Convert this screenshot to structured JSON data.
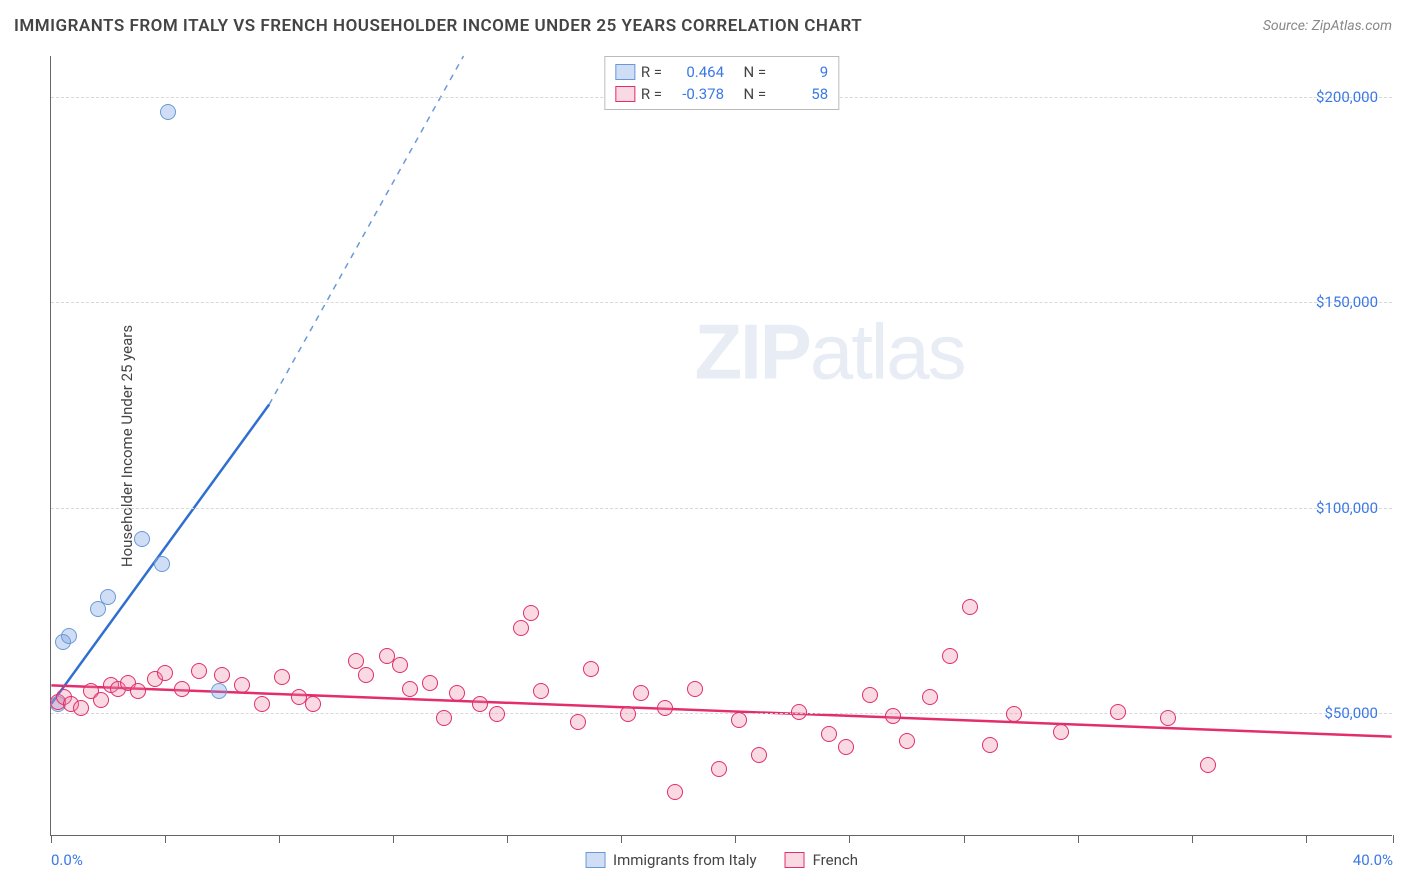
{
  "title": "IMMIGRANTS FROM ITALY VS FRENCH HOUSEHOLDER INCOME UNDER 25 YEARS CORRELATION CHART",
  "source": "Source: ZipAtlas.com",
  "watermark_a": "ZIP",
  "watermark_b": "atlas",
  "ylabel": "Householder Income Under 25 years",
  "chart": {
    "type": "scatter",
    "background_color": "#ffffff",
    "grid_color": "#d8d8d8",
    "axis_color": "#666666",
    "xlim": [
      0,
      40
    ],
    "ylim": [
      20000,
      210000
    ],
    "xtick_positions": [
      0,
      3.4,
      6.8,
      10.2,
      13.6,
      17.0,
      20.4,
      23.8,
      27.2,
      30.6,
      34.0,
      37.4,
      40.0
    ],
    "xtick_labels": {
      "0": "0.0%",
      "40": "40.0%"
    },
    "ytick_positions": [
      50000,
      100000,
      150000,
      200000
    ],
    "ytick_labels": {
      "50000": "$50,000",
      "100000": "$100,000",
      "150000": "$150,000",
      "200000": "$200,000"
    },
    "marker_radius": 8,
    "series": [
      {
        "name": "Immigrants from Italy",
        "fill": "rgba(120,160,225,0.35)",
        "stroke": "#6a99d8",
        "line_color": "#2f6fd0",
        "dash_color": "#6a99d8",
        "R_label": "R =",
        "R": "0.464",
        "N_label": "N =",
        "N": "9",
        "trend": {
          "x1": 0,
          "y1": 52000,
          "x2": 6.5,
          "y2": 125000,
          "dash_to_x": 12.3,
          "dash_to_y": 210000
        },
        "points": [
          {
            "x": 0.2,
            "y": 52000
          },
          {
            "x": 0.35,
            "y": 67000
          },
          {
            "x": 0.55,
            "y": 68500
          },
          {
            "x": 1.4,
            "y": 75000
          },
          {
            "x": 1.7,
            "y": 78000
          },
          {
            "x": 2.7,
            "y": 92000
          },
          {
            "x": 3.3,
            "y": 86000
          },
          {
            "x": 5.0,
            "y": 55000
          },
          {
            "x": 3.5,
            "y": 196000
          }
        ]
      },
      {
        "name": "French",
        "fill": "rgba(235,130,160,0.30)",
        "stroke": "#e32d6d",
        "line_color": "#e32d6d",
        "R_label": "R =",
        "R": "-0.378",
        "N_label": "N =",
        "N": "58",
        "trend": {
          "x1": 0,
          "y1": 56500,
          "x2": 40,
          "y2": 44000
        },
        "points": [
          {
            "x": 0.2,
            "y": 52500
          },
          {
            "x": 0.4,
            "y": 53500
          },
          {
            "x": 0.6,
            "y": 52000
          },
          {
            "x": 0.9,
            "y": 51000
          },
          {
            "x": 1.2,
            "y": 55000
          },
          {
            "x": 1.5,
            "y": 53000
          },
          {
            "x": 1.8,
            "y": 56500
          },
          {
            "x": 2.0,
            "y": 55500
          },
          {
            "x": 2.3,
            "y": 57000
          },
          {
            "x": 2.6,
            "y": 55000
          },
          {
            "x": 3.1,
            "y": 58000
          },
          {
            "x": 3.4,
            "y": 59500
          },
          {
            "x": 3.9,
            "y": 55500
          },
          {
            "x": 4.4,
            "y": 60000
          },
          {
            "x": 5.1,
            "y": 59000
          },
          {
            "x": 5.7,
            "y": 56500
          },
          {
            "x": 6.3,
            "y": 52000
          },
          {
            "x": 6.9,
            "y": 58500
          },
          {
            "x": 7.4,
            "y": 53500
          },
          {
            "x": 7.8,
            "y": 52000
          },
          {
            "x": 9.1,
            "y": 62500
          },
          {
            "x": 9.4,
            "y": 59000
          },
          {
            "x": 10.0,
            "y": 63500
          },
          {
            "x": 10.4,
            "y": 61500
          },
          {
            "x": 10.7,
            "y": 55500
          },
          {
            "x": 11.3,
            "y": 57000
          },
          {
            "x": 11.7,
            "y": 48500
          },
          {
            "x": 12.1,
            "y": 54500
          },
          {
            "x": 12.8,
            "y": 52000
          },
          {
            "x": 13.3,
            "y": 49500
          },
          {
            "x": 14.0,
            "y": 70500
          },
          {
            "x": 14.3,
            "y": 74000
          },
          {
            "x": 14.6,
            "y": 55000
          },
          {
            "x": 15.7,
            "y": 47500
          },
          {
            "x": 16.1,
            "y": 60500
          },
          {
            "x": 17.2,
            "y": 49500
          },
          {
            "x": 17.6,
            "y": 54500
          },
          {
            "x": 18.3,
            "y": 51000
          },
          {
            "x": 18.6,
            "y": 30500
          },
          {
            "x": 19.2,
            "y": 55500
          },
          {
            "x": 19.9,
            "y": 36000
          },
          {
            "x": 20.5,
            "y": 48000
          },
          {
            "x": 21.1,
            "y": 39500
          },
          {
            "x": 22.3,
            "y": 50000
          },
          {
            "x": 23.2,
            "y": 44500
          },
          {
            "x": 23.7,
            "y": 41500
          },
          {
            "x": 24.4,
            "y": 54000
          },
          {
            "x": 25.1,
            "y": 49000
          },
          {
            "x": 25.5,
            "y": 43000
          },
          {
            "x": 26.2,
            "y": 53500
          },
          {
            "x": 26.8,
            "y": 63500
          },
          {
            "x": 27.4,
            "y": 75500
          },
          {
            "x": 28.0,
            "y": 42000
          },
          {
            "x": 28.7,
            "y": 49500
          },
          {
            "x": 30.1,
            "y": 45000
          },
          {
            "x": 31.8,
            "y": 50000
          },
          {
            "x": 33.3,
            "y": 48500
          },
          {
            "x": 34.5,
            "y": 37000
          }
        ]
      }
    ]
  }
}
